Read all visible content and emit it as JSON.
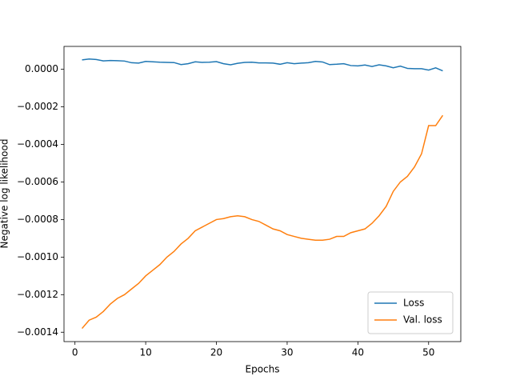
{
  "chart_data": {
    "type": "line",
    "x_label": "Epochs",
    "y_label": "Negative log likelihood",
    "x": [
      1,
      2,
      3,
      4,
      5,
      6,
      7,
      8,
      9,
      10,
      11,
      12,
      13,
      14,
      15,
      16,
      17,
      18,
      19,
      20,
      21,
      22,
      23,
      24,
      25,
      26,
      27,
      28,
      29,
      30,
      31,
      32,
      33,
      34,
      35,
      36,
      37,
      38,
      39,
      40,
      41,
      42,
      43,
      44,
      45,
      46,
      47,
      48,
      49,
      50,
      51,
      52
    ],
    "series": [
      {
        "name": "Loss",
        "color": "#1f77b4",
        "values": [
          5e-05,
          5.5e-05,
          5.2e-05,
          4.5e-05,
          4.7e-05,
          4.6e-05,
          4.4e-05,
          3.5e-05,
          3.3e-05,
          4.2e-05,
          4e-05,
          3.8e-05,
          3.7e-05,
          3.6e-05,
          2.5e-05,
          3e-05,
          4e-05,
          3.7e-05,
          3.8e-05,
          4.1e-05,
          3e-05,
          2.4e-05,
          3.2e-05,
          3.7e-05,
          3.8e-05,
          3.4e-05,
          3.4e-05,
          3.3e-05,
          2.7e-05,
          3.5e-05,
          3e-05,
          3.3e-05,
          3.5e-05,
          4.2e-05,
          3.9e-05,
          2.5e-05,
          2.7e-05,
          3e-05,
          2e-05,
          1.8e-05,
          2.3e-05,
          1.5e-05,
          2.4e-05,
          1.8e-05,
          8e-06,
          1.7e-05,
          5e-06,
          3e-06,
          3e-06,
          -4e-06,
          8e-06,
          -8e-06
        ]
      },
      {
        "name": "Val. loss",
        "color": "#ff7f0e",
        "values": [
          -0.00138,
          -0.001336,
          -0.00132,
          -0.00129,
          -0.00125,
          -0.00122,
          -0.0012,
          -0.00117,
          -0.00114,
          -0.0011,
          -0.00107,
          -0.00104,
          -0.001,
          -0.00097,
          -0.00093,
          -0.0009,
          -0.00086,
          -0.00084,
          -0.00082,
          -0.0008,
          -0.000795,
          -0.000785,
          -0.00078,
          -0.000785,
          -0.0008,
          -0.00081,
          -0.00083,
          -0.00085,
          -0.00086,
          -0.00088,
          -0.00089,
          -0.0009,
          -0.000905,
          -0.00091,
          -0.00091,
          -0.000905,
          -0.00089,
          -0.00089,
          -0.00087,
          -0.00086,
          -0.00085,
          -0.00082,
          -0.00078,
          -0.00073,
          -0.00065,
          -0.0006,
          -0.00057,
          -0.00052,
          -0.00045,
          -0.0003,
          -0.0003,
          -0.000245
        ]
      }
    ],
    "xlim": [
      -1.55,
      54.55
    ],
    "ylim": [
      -0.00145,
      0.000122
    ],
    "xticks": [
      0,
      10,
      20,
      30,
      40,
      50
    ],
    "yticks": [
      {
        "value": 0,
        "label": "0.0000"
      },
      {
        "value": -0.0002,
        "label": "−0.0002"
      },
      {
        "value": -0.0004,
        "label": "−0.0004"
      },
      {
        "value": -0.0006,
        "label": "−0.0006"
      },
      {
        "value": -0.0008,
        "label": "−0.0008"
      },
      {
        "value": -0.001,
        "label": "−0.0010"
      },
      {
        "value": -0.0012,
        "label": "−0.0012"
      },
      {
        "value": -0.0014,
        "label": "−0.0014"
      }
    ],
    "legend": "lower right"
  }
}
